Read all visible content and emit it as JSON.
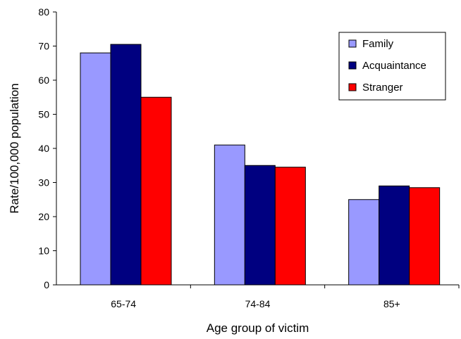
{
  "chart_data": {
    "type": "bar",
    "title": "",
    "xlabel": "Age group of victim",
    "ylabel": "Rate/100,000 population",
    "categories": [
      "65-74",
      "74-84",
      "85+"
    ],
    "ylim": [
      0,
      80
    ],
    "yticks": [
      0,
      10,
      20,
      30,
      40,
      50,
      60,
      70,
      80
    ],
    "grid": false,
    "legend_position": "top-right",
    "series": [
      {
        "name": "Family",
        "color": "#9999FF",
        "values": [
          68,
          41,
          25
        ]
      },
      {
        "name": "Acquaintance",
        "color": "#000080",
        "values": [
          70.5,
          35,
          29
        ]
      },
      {
        "name": "Stranger",
        "color": "#FF0000",
        "values": [
          55,
          34.5,
          28.5
        ]
      }
    ]
  }
}
